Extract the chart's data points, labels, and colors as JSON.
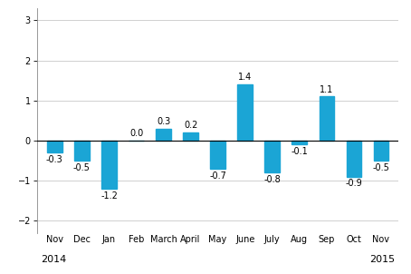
{
  "categories": [
    "Nov",
    "Dec",
    "Jan",
    "Feb",
    "March",
    "April",
    "May",
    "June",
    "July",
    "Aug",
    "Sep",
    "Oct",
    "Nov"
  ],
  "values": [
    -0.3,
    -0.5,
    -1.2,
    0.0,
    0.3,
    0.2,
    -0.7,
    1.4,
    -0.8,
    -0.1,
    1.1,
    -0.9,
    -0.5
  ],
  "bar_color": "#1ba5d5",
  "ylim": [
    -2.3,
    3.3
  ],
  "yticks": [
    -2,
    -1,
    0,
    1,
    2,
    3
  ],
  "year_left": "2014",
  "year_right": "2015",
  "tick_fontsize": 7.0,
  "year_fontsize": 8.0,
  "value_fontsize": 7.0,
  "bg_color": "#ffffff",
  "grid_color": "#d0d0d0",
  "bar_width": 0.55
}
